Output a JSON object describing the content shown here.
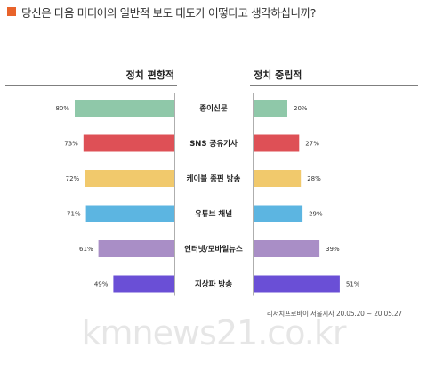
{
  "title": "당신은 다음 미디어의 일반적 보도 태도가 어떻다고 생각하십니까?",
  "watermark": "kmnews21.co.kr",
  "source": "리서치프로바이 서울지사 20.05.20 ~ 20.05.27",
  "colors": {
    "title_marker": "#e8632b",
    "axis_line": "#333333"
  },
  "chart_data": {
    "type": "bar",
    "layout": "back-to-back",
    "categories": [
      "종이신문",
      "SNS 공유기사",
      "케이블 종편 방송",
      "유튜브 채널",
      "인터넷/모바일뉴스",
      "지상파 방송"
    ],
    "series": [
      {
        "name": "정치 편향적",
        "values": [
          80,
          73,
          72,
          71,
          61,
          49
        ],
        "labels": [
          "80%",
          "73%",
          "72%",
          "71%",
          "61%",
          "49%"
        ]
      },
      {
        "name": "정치 중립적",
        "values": [
          20,
          27,
          28,
          29,
          39,
          51
        ],
        "labels": [
          "20%",
          "27%",
          "28%",
          "29%",
          "39%",
          "51%"
        ]
      }
    ],
    "bar_colors": [
      "#8fc8a9",
      "#de5056",
      "#f1c96c",
      "#5cb5e1",
      "#a98ec6",
      "#6a4fd6"
    ],
    "unit": "%",
    "xlim": [
      0,
      100
    ]
  }
}
